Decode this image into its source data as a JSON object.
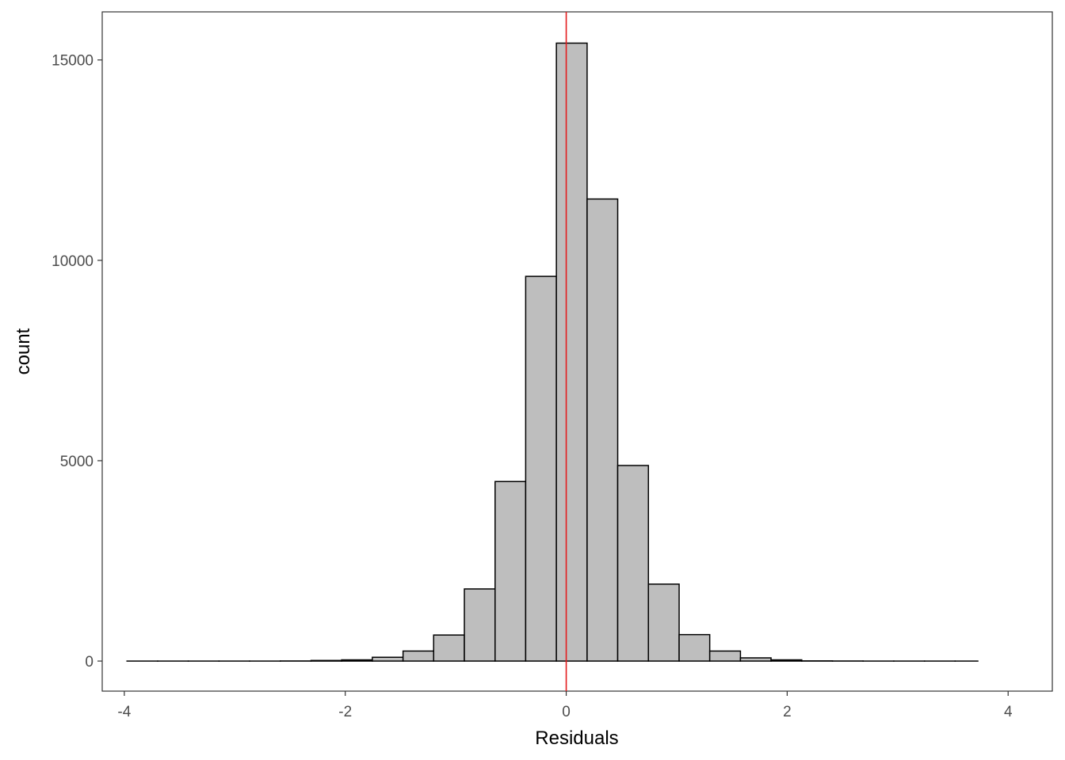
{
  "chart_data": {
    "type": "bar",
    "subtype": "histogram",
    "title": "",
    "xlabel": "Residuals",
    "ylabel": "count",
    "xlim": [
      -4.2,
      4.4
    ],
    "ylim": [
      -750,
      16200
    ],
    "grid": false,
    "x_ticks": [
      -4,
      -2,
      0,
      2,
      4
    ],
    "x_tick_labels": [
      "-4",
      "-2",
      "0",
      "2",
      "4"
    ],
    "y_ticks": [
      0,
      5000,
      10000,
      15000
    ],
    "y_tick_labels": [
      "0",
      "5000",
      "10000",
      "15000"
    ],
    "bin_width": 0.2777,
    "bins": [
      {
        "x0": -3.976,
        "x1": -3.698,
        "count": 0
      },
      {
        "x0": -3.698,
        "x1": -3.421,
        "count": 0
      },
      {
        "x0": -3.421,
        "x1": -3.143,
        "count": 0
      },
      {
        "x0": -3.143,
        "x1": -2.866,
        "count": 0
      },
      {
        "x0": -2.866,
        "x1": -2.588,
        "count": 0
      },
      {
        "x0": -2.588,
        "x1": -2.31,
        "count": 3
      },
      {
        "x0": -2.31,
        "x1": -2.033,
        "count": 15
      },
      {
        "x0": -2.033,
        "x1": -1.755,
        "count": 30
      },
      {
        "x0": -1.755,
        "x1": -1.477,
        "count": 95
      },
      {
        "x0": -1.477,
        "x1": -1.2,
        "count": 250
      },
      {
        "x0": -1.2,
        "x1": -0.922,
        "count": 650
      },
      {
        "x0": -0.922,
        "x1": -0.644,
        "count": 1800
      },
      {
        "x0": -0.644,
        "x1": -0.367,
        "count": 4480
      },
      {
        "x0": -0.367,
        "x1": -0.089,
        "count": 9600
      },
      {
        "x0": -0.089,
        "x1": 0.189,
        "count": 15420
      },
      {
        "x0": 0.189,
        "x1": 0.466,
        "count": 11530
      },
      {
        "x0": 0.466,
        "x1": 0.744,
        "count": 4880
      },
      {
        "x0": 0.744,
        "x1": 1.022,
        "count": 1920
      },
      {
        "x0": 1.022,
        "x1": 1.299,
        "count": 660
      },
      {
        "x0": 1.299,
        "x1": 1.577,
        "count": 250
      },
      {
        "x0": 1.577,
        "x1": 1.854,
        "count": 80
      },
      {
        "x0": 1.854,
        "x1": 2.132,
        "count": 30
      },
      {
        "x0": 2.132,
        "x1": 2.41,
        "count": 5
      },
      {
        "x0": 2.41,
        "x1": 2.687,
        "count": 2
      },
      {
        "x0": 2.687,
        "x1": 2.965,
        "count": 0
      },
      {
        "x0": 2.965,
        "x1": 3.243,
        "count": 0
      },
      {
        "x0": 3.243,
        "x1": 3.52,
        "count": 0
      },
      {
        "x0": 3.52,
        "x1": 3.726,
        "count": 0
      }
    ],
    "reference_line": {
      "orientation": "vertical",
      "x": 0,
      "color": "#e41a1c"
    },
    "bar_fill": "#bebebe",
    "bar_stroke": "#000000",
    "panel_border": "#333333"
  }
}
